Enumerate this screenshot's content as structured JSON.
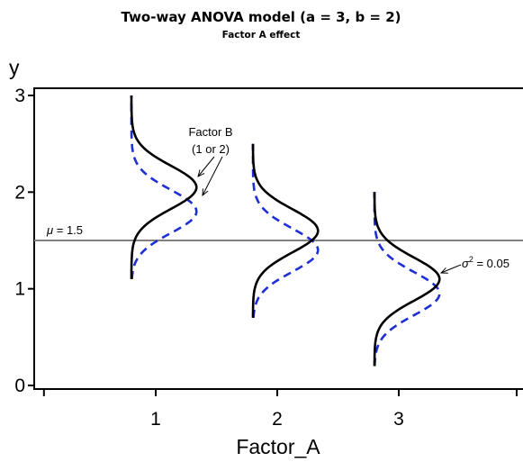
{
  "chart_data": {
    "type": "line",
    "title": "Two-way ANOVA model (a = 3, b = 2)",
    "subtitle": "Factor A effect",
    "xlabel": "Factor_A",
    "ylabel": "y",
    "x_ticks": [
      "1",
      "2",
      "3"
    ],
    "y_ticks": [
      "0",
      "1",
      "2",
      "3"
    ],
    "xlim": [
      0,
      4
    ],
    "ylim": [
      0,
      3
    ],
    "reference_line": {
      "y": 1.5,
      "label_symbol": "μ",
      "label_value": " = 1.5",
      "color": "#808080"
    },
    "variance_label": {
      "symbol": "σ",
      "sup": "2",
      "value": " = 0.05"
    },
    "factor_b_label": [
      "Factor B",
      "(1 or 2)"
    ],
    "sigma": 0.2236,
    "density_scale": 0.3,
    "series": [
      {
        "level": 1,
        "baseline_x": 0.8,
        "ymin": 1.1,
        "ymax": 3.0,
        "mean_factor_b_1": 2.05,
        "mean_factor_b_2": 1.8
      },
      {
        "level": 2,
        "baseline_x": 1.8,
        "ymin": 0.7,
        "ymax": 2.5,
        "mean_factor_b_1": 1.6,
        "mean_factor_b_2": 1.4
      },
      {
        "level": 3,
        "baseline_x": 2.8,
        "ymin": 0.2,
        "ymax": 2.0,
        "mean_factor_b_1": 1.1,
        "mean_factor_b_2": 0.95
      }
    ],
    "line_styles": {
      "factor_b_1": {
        "color": "#000000",
        "dash": "solid"
      },
      "factor_b_2": {
        "color": "#1f2fd6",
        "dash": "dashed"
      }
    },
    "grid": false,
    "legend": "none"
  }
}
